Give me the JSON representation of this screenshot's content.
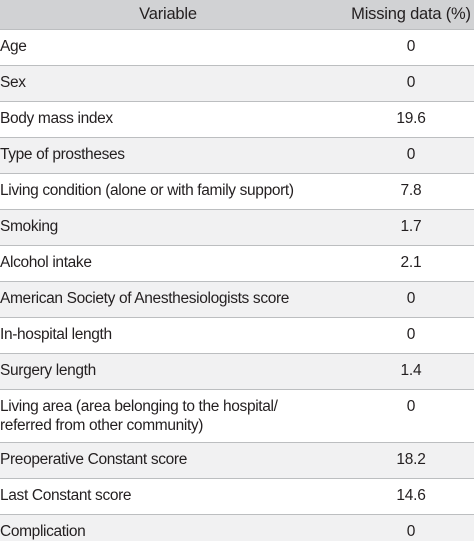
{
  "table": {
    "headers": {
      "variable": "Variable",
      "missing": "Missing data (%)"
    },
    "rows": [
      {
        "variable": "Age",
        "missing": "0"
      },
      {
        "variable": "Sex",
        "missing": "0"
      },
      {
        "variable": "Body mass index",
        "missing": "19.6"
      },
      {
        "variable": "Type of prostheses",
        "missing": "0"
      },
      {
        "variable": "Living condition (alone or with family support)",
        "missing": "7.8"
      },
      {
        "variable": "Smoking",
        "missing": "1.7"
      },
      {
        "variable": "Alcohol intake",
        "missing": "2.1"
      },
      {
        "variable": "American Society of Anesthesiologists score",
        "missing": "0"
      },
      {
        "variable": "In-hospital length",
        "missing": "0"
      },
      {
        "variable": "Surgery length",
        "missing": "1.4"
      },
      {
        "variable": "Living area (area belonging to the hospital/\nreferred from other community)",
        "missing": "0"
      },
      {
        "variable": "Preoperative Constant score",
        "missing": "18.2"
      },
      {
        "variable": "Last Constant score",
        "missing": "14.6"
      },
      {
        "variable": "Complication",
        "missing": "0"
      }
    ]
  }
}
